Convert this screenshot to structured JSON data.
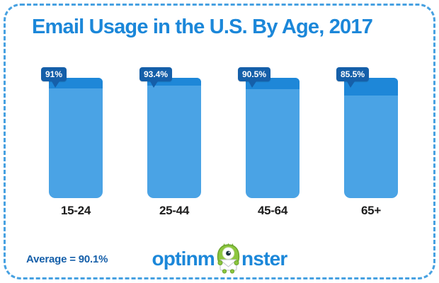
{
  "title": "Email Usage in the U.S. By Age, 2017",
  "chart_data": {
    "type": "bar",
    "title": "Email Usage in the U.S. By Age, 2017",
    "categories": [
      "15-24",
      "25-44",
      "45-64",
      "65+"
    ],
    "values": [
      91,
      93.4,
      90.5,
      85.5
    ],
    "value_labels": [
      "91%",
      "93.4%",
      "90.5%",
      "85.5%"
    ],
    "unit": "%",
    "xlabel": "",
    "ylabel": "",
    "ylim": [
      0,
      100
    ],
    "grid": false,
    "legend": "none",
    "average": 90.1
  },
  "footer": {
    "average_label": "Average = 90.1%",
    "logo": {
      "part1": "optinm",
      "part2": "nster",
      "mascot": "monster-with-envelope-icon"
    }
  },
  "colors": {
    "title_blue": "#1b87d9",
    "bar_body": "#4aa3e5",
    "bar_cap": "#1e87d8",
    "bubble_navy": "#155fa9",
    "border_blue": "#47a1e1",
    "axis_label": "#1d1d1d",
    "background": "#ffffff",
    "logo_green": "#86c440"
  }
}
